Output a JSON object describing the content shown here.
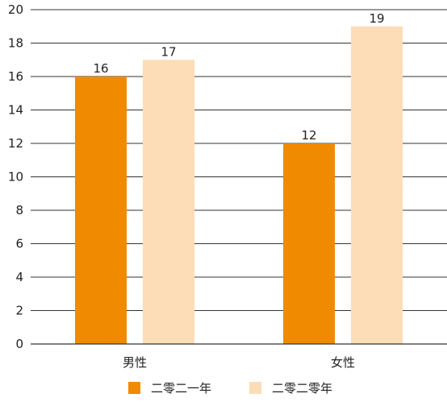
{
  "chart_data": {
    "type": "bar",
    "title": "",
    "xlabel": "",
    "ylabel": "",
    "categories": [
      "男性",
      "女性"
    ],
    "series": [
      {
        "name": "二零二一年",
        "values": [
          16,
          12
        ],
        "color": "#F08A00"
      },
      {
        "name": "二零二零年",
        "values": [
          17,
          19
        ],
        "color": "#FCDDB8"
      }
    ],
    "ylim": [
      0,
      20
    ],
    "yticks": [
      "0",
      "2",
      "4",
      "6",
      "8",
      "10",
      "12",
      "14",
      "16",
      "18",
      "20"
    ],
    "data_labels": [
      [
        "16",
        "12"
      ],
      [
        "17",
        "19"
      ]
    ],
    "grid": true,
    "legend_position": "bottom"
  }
}
